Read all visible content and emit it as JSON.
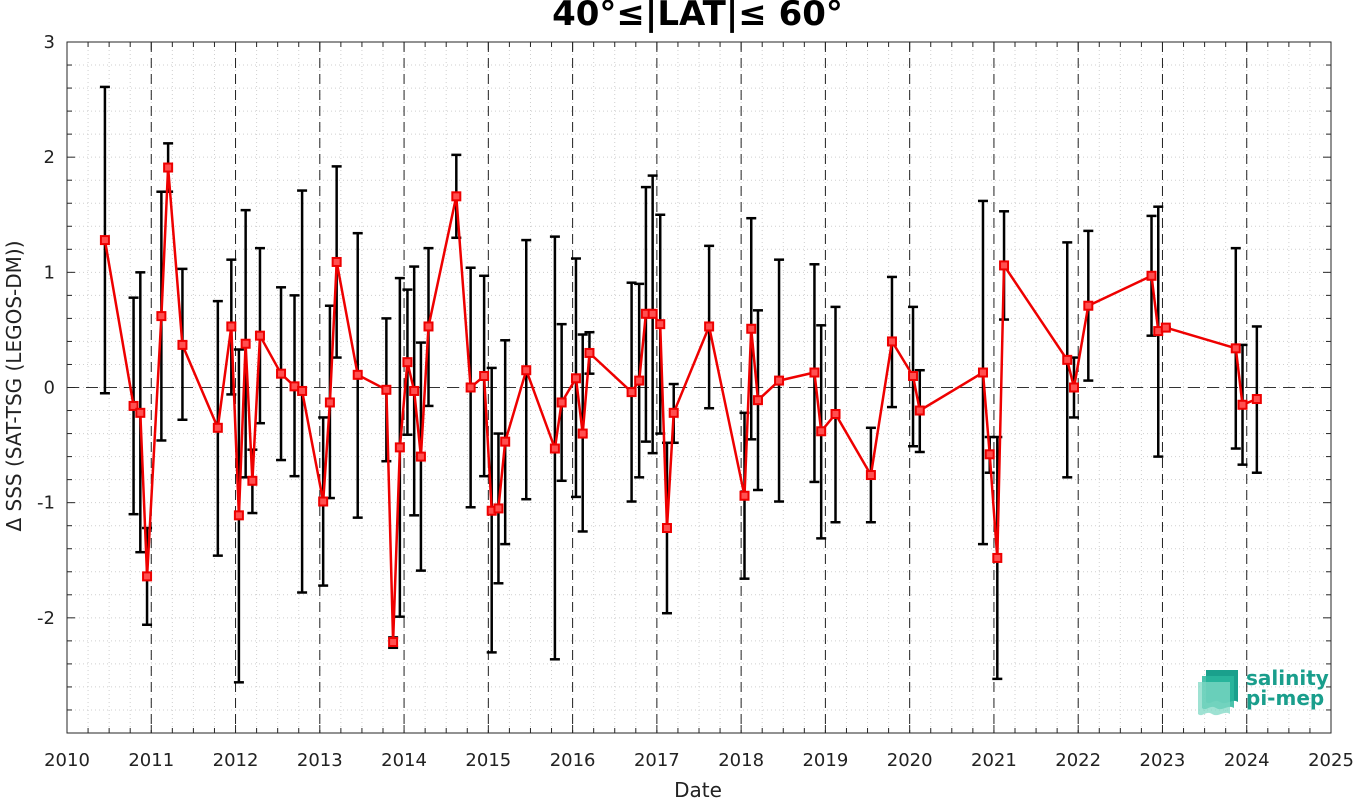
{
  "chart_data": {
    "type": "line",
    "title": "40°≤|LAT|≤ 60°",
    "xlabel": "Date",
    "ylabel": "Δ SSS (SAT-TSG (LEGOS-DM))",
    "xlim": [
      2010,
      2025
    ],
    "ylim": [
      -3,
      3
    ],
    "x_ticks": [
      "2010",
      "2011",
      "2012",
      "2013",
      "2014",
      "2015",
      "2016",
      "2017",
      "2018",
      "2019",
      "2020",
      "2021",
      "2022",
      "2023",
      "2024",
      "2025"
    ],
    "y_ticks": [
      "3",
      "2",
      "1",
      "0",
      "-1",
      "-2"
    ],
    "grid": "dotted minor grid",
    "year_boundary_lines": "dashed vertical at each year",
    "zero_line": "dashed horizontal at 0",
    "series": [
      {
        "line_color": "#ee0000",
        "errorbar_color": "#000000",
        "marker": "square",
        "points": [
          {
            "x": 2010.45,
            "y": 1.28,
            "lo": -0.05,
            "hi": 2.61
          },
          {
            "x": 2010.79,
            "y": -0.16,
            "lo": -1.1,
            "hi": 0.78
          },
          {
            "x": 2010.87,
            "y": -0.22,
            "lo": -1.43,
            "hi": 1.0
          },
          {
            "x": 2010.95,
            "y": -1.64,
            "lo": -2.06,
            "hi": -1.22
          },
          {
            "x": 2011.12,
            "y": 0.62,
            "lo": -0.46,
            "hi": 1.7
          },
          {
            "x": 2011.2,
            "y": 1.91,
            "lo": 1.7,
            "hi": 2.12
          },
          {
            "x": 2011.37,
            "y": 0.37,
            "lo": -0.28,
            "hi": 1.03
          },
          {
            "x": 2011.79,
            "y": -0.35,
            "lo": -1.46,
            "hi": 0.75
          },
          {
            "x": 2011.95,
            "y": 0.53,
            "lo": -0.06,
            "hi": 1.11
          },
          {
            "x": 2012.04,
            "y": -1.11,
            "lo": -2.56,
            "hi": 0.33
          },
          {
            "x": 2012.12,
            "y": 0.38,
            "lo": -0.78,
            "hi": 1.54
          },
          {
            "x": 2012.2,
            "y": -0.81,
            "lo": -1.09,
            "hi": -0.54
          },
          {
            "x": 2012.29,
            "y": 0.45,
            "lo": -0.31,
            "hi": 1.21
          },
          {
            "x": 2012.54,
            "y": 0.12,
            "lo": -0.63,
            "hi": 0.87
          },
          {
            "x": 2012.7,
            "y": 0.01,
            "lo": -0.77,
            "hi": 0.8
          },
          {
            "x": 2012.79,
            "y": -0.03,
            "lo": -1.78,
            "hi": 1.71
          },
          {
            "x": 2013.04,
            "y": -0.99,
            "lo": -1.72,
            "hi": -0.26
          },
          {
            "x": 2013.12,
            "y": -0.13,
            "lo": -0.96,
            "hi": 0.71
          },
          {
            "x": 2013.2,
            "y": 1.09,
            "lo": 0.26,
            "hi": 1.92
          },
          {
            "x": 2013.45,
            "y": 0.11,
            "lo": -1.13,
            "hi": 1.34
          },
          {
            "x": 2013.79,
            "y": -0.02,
            "lo": -0.64,
            "hi": 0.6
          },
          {
            "x": 2013.87,
            "y": -2.21,
            "lo": -2.26,
            "hi": -2.17
          },
          {
            "x": 2013.95,
            "y": -0.52,
            "lo": -1.99,
            "hi": 0.95
          },
          {
            "x": 2014.04,
            "y": 0.22,
            "lo": -0.41,
            "hi": 0.85
          },
          {
            "x": 2014.12,
            "y": -0.03,
            "lo": -1.11,
            "hi": 1.05
          },
          {
            "x": 2014.2,
            "y": -0.6,
            "lo": -1.59,
            "hi": 0.39
          },
          {
            "x": 2014.29,
            "y": 0.53,
            "lo": -0.16,
            "hi": 1.21
          },
          {
            "x": 2014.62,
            "y": 1.66,
            "lo": 1.3,
            "hi": 2.02
          },
          {
            "x": 2014.79,
            "y": 0.0,
            "lo": -1.04,
            "hi": 1.04
          },
          {
            "x": 2014.95,
            "y": 0.1,
            "lo": -0.77,
            "hi": 0.97
          },
          {
            "x": 2015.04,
            "y": -1.07,
            "lo": -2.3,
            "hi": 0.17
          },
          {
            "x": 2015.12,
            "y": -1.05,
            "lo": -1.7,
            "hi": -0.4
          },
          {
            "x": 2015.2,
            "y": -0.47,
            "lo": -1.36,
            "hi": 0.41
          },
          {
            "x": 2015.45,
            "y": 0.15,
            "lo": -0.97,
            "hi": 1.28
          },
          {
            "x": 2015.79,
            "y": -0.53,
            "lo": -2.36,
            "hi": 1.31
          },
          {
            "x": 2015.87,
            "y": -0.13,
            "lo": -0.81,
            "hi": 0.55
          },
          {
            "x": 2016.04,
            "y": 0.08,
            "lo": -0.95,
            "hi": 1.12
          },
          {
            "x": 2016.12,
            "y": -0.4,
            "lo": -1.25,
            "hi": 0.46
          },
          {
            "x": 2016.2,
            "y": 0.3,
            "lo": 0.12,
            "hi": 0.48
          },
          {
            "x": 2016.7,
            "y": -0.04,
            "lo": -0.99,
            "hi": 0.91
          },
          {
            "x": 2016.79,
            "y": 0.06,
            "lo": -0.78,
            "hi": 0.9
          },
          {
            "x": 2016.87,
            "y": 0.64,
            "lo": -0.47,
            "hi": 1.74
          },
          {
            "x": 2016.95,
            "y": 0.64,
            "lo": -0.57,
            "hi": 1.84
          },
          {
            "x": 2017.04,
            "y": 0.55,
            "lo": -0.4,
            "hi": 1.5
          },
          {
            "x": 2017.12,
            "y": -1.22,
            "lo": -1.96,
            "hi": -0.48
          },
          {
            "x": 2017.2,
            "y": -0.22,
            "lo": -0.48,
            "hi": 0.03
          },
          {
            "x": 2017.62,
            "y": 0.53,
            "lo": -0.18,
            "hi": 1.23
          },
          {
            "x": 2018.04,
            "y": -0.94,
            "lo": -1.66,
            "hi": -0.22
          },
          {
            "x": 2018.12,
            "y": 0.51,
            "lo": -0.45,
            "hi": 1.47
          },
          {
            "x": 2018.2,
            "y": -0.11,
            "lo": -0.89,
            "hi": 0.67
          },
          {
            "x": 2018.45,
            "y": 0.06,
            "lo": -0.99,
            "hi": 1.11
          },
          {
            "x": 2018.87,
            "y": 0.13,
            "lo": -0.82,
            "hi": 1.07
          },
          {
            "x": 2018.95,
            "y": -0.38,
            "lo": -1.31,
            "hi": 0.54
          },
          {
            "x": 2019.12,
            "y": -0.23,
            "lo": -1.17,
            "hi": 0.7
          },
          {
            "x": 2019.54,
            "y": -0.76,
            "lo": -1.17,
            "hi": -0.35
          },
          {
            "x": 2019.79,
            "y": 0.4,
            "lo": -0.17,
            "hi": 0.96
          },
          {
            "x": 2020.04,
            "y": 0.1,
            "lo": -0.51,
            "hi": 0.7
          },
          {
            "x": 2020.12,
            "y": -0.2,
            "lo": -0.56,
            "hi": 0.15
          },
          {
            "x": 2020.87,
            "y": 0.13,
            "lo": -1.36,
            "hi": 1.62
          },
          {
            "x": 2020.95,
            "y": -0.58,
            "lo": -0.74,
            "hi": -0.43
          },
          {
            "x": 2021.04,
            "y": -1.48,
            "lo": -2.53,
            "hi": -0.43
          },
          {
            "x": 2021.12,
            "y": 1.06,
            "lo": 0.59,
            "hi": 1.53
          },
          {
            "x": 2021.87,
            "y": 0.24,
            "lo": -0.78,
            "hi": 1.26
          },
          {
            "x": 2021.95,
            "y": 0.0,
            "lo": -0.26,
            "hi": 0.26
          },
          {
            "x": 2022.12,
            "y": 0.71,
            "lo": 0.06,
            "hi": 1.36
          },
          {
            "x": 2022.87,
            "y": 0.97,
            "lo": 0.45,
            "hi": 1.49
          },
          {
            "x": 2022.95,
            "y": 0.49,
            "lo": -0.6,
            "hi": 1.57
          },
          {
            "x": 2023.04,
            "y": 0.52,
            "lo": 0.52,
            "hi": 0.52
          },
          {
            "x": 2023.87,
            "y": 0.34,
            "lo": -0.53,
            "hi": 1.21
          },
          {
            "x": 2023.95,
            "y": -0.15,
            "lo": -0.67,
            "hi": 0.37
          },
          {
            "x": 2024.12,
            "y": -0.1,
            "lo": -0.74,
            "hi": 0.53
          }
        ]
      }
    ]
  },
  "logo": {
    "line1": "salinity",
    "line2": "pi-mep",
    "color": "#1a9e8c"
  }
}
